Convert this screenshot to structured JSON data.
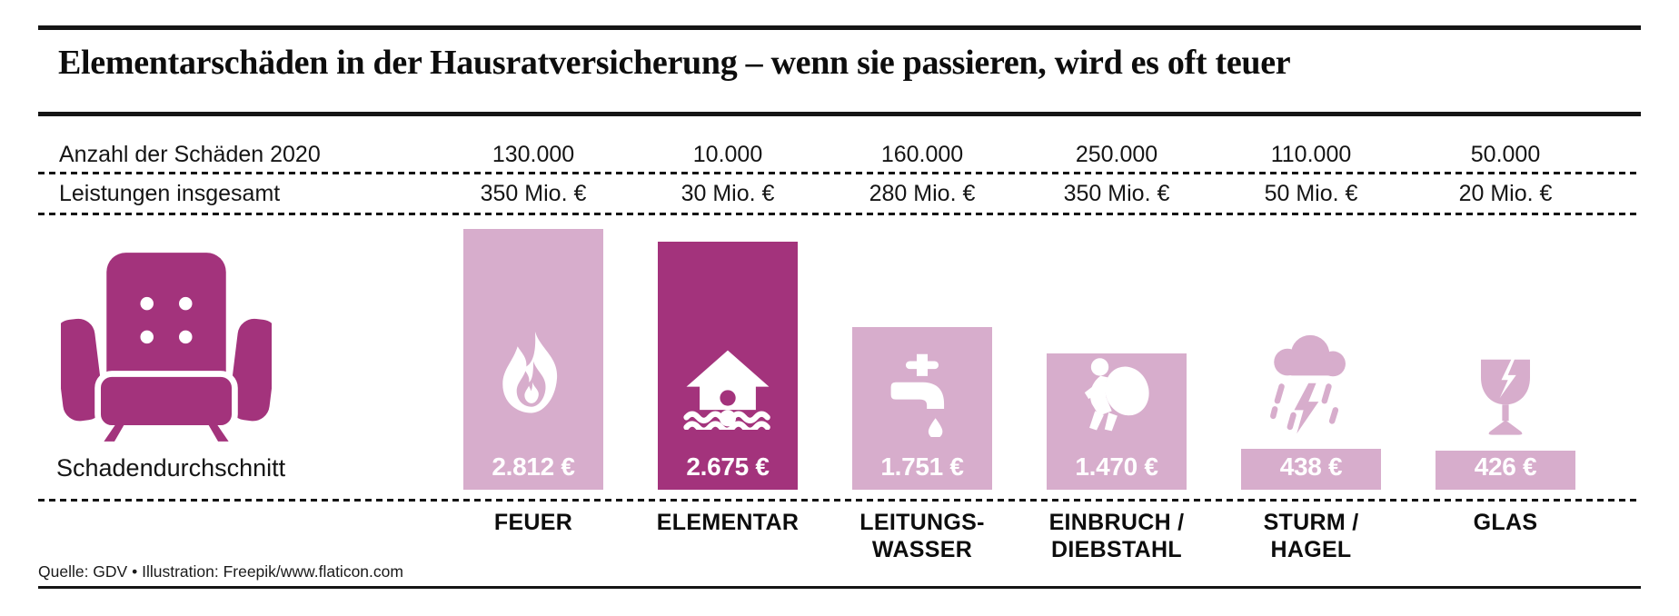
{
  "title": "Elementarschäden in der Hausratversicherung – wenn sie passieren, wird es oft teuer",
  "rows": {
    "anzahl_label": "Anzahl der Schäden 2020",
    "leistungen_label": "Leistungen insgesamt"
  },
  "average_label": "Schadendurchschnitt",
  "source": "Quelle: GDV • Illustration: Freepik/www.flaticon.com",
  "columns": [
    {
      "category": "FEUER",
      "label1": "FEUER",
      "label2": "",
      "anzahl": "130.000",
      "leistungen": "350 Mio. €",
      "value": 2812,
      "value_label": "2.812 €",
      "highlight": false,
      "icon": "fire-icon"
    },
    {
      "category": "ELEMENTAR",
      "label1": "ELEMENTAR",
      "label2": "",
      "anzahl": "10.000",
      "leistungen": "30 Mio. €",
      "value": 2675,
      "value_label": "2.675 €",
      "highlight": true,
      "icon": "flooded-house-icon"
    },
    {
      "category": "LEITUNGSWASSER",
      "label1": "LEITUNGS-",
      "label2": "WASSER",
      "anzahl": "160.000",
      "leistungen": "280 Mio. €",
      "value": 1751,
      "value_label": "1.751 €",
      "highlight": false,
      "icon": "water-tap-icon"
    },
    {
      "category": "EINBRUCH/DIEBSTAHL",
      "label1": "EINBRUCH /",
      "label2": "DIEBSTAHL",
      "anzahl": "250.000",
      "leistungen": "350 Mio. €",
      "value": 1470,
      "value_label": "1.470 €",
      "highlight": false,
      "icon": "burglar-icon"
    },
    {
      "category": "STURM/HAGEL",
      "label1": "STURM /",
      "label2": "HAGEL",
      "anzahl": "110.000",
      "leistungen": "50 Mio. €",
      "value": 438,
      "value_label": "438 €",
      "highlight": false,
      "icon": "storm-cloud-icon"
    },
    {
      "category": "GLAS",
      "label1": "GLAS",
      "label2": "",
      "anzahl": "50.000",
      "leistungen": "20 Mio. €",
      "value": 426,
      "value_label": "426 €",
      "highlight": false,
      "icon": "broken-glass-icon"
    }
  ],
  "chart_data": {
    "type": "bar",
    "title": "Elementarschäden in der Hausratversicherung – wenn sie passieren, wird es oft teuer",
    "categories": [
      "FEUER",
      "ELEMENTAR",
      "LEITUNGSWASSER",
      "EINBRUCH/DIEBSTAHL",
      "STURM/HAGEL",
      "GLAS"
    ],
    "series": [
      {
        "name": "Anzahl der Schäden 2020",
        "values": [
          130000,
          10000,
          160000,
          250000,
          110000,
          50000
        ]
      },
      {
        "name": "Leistungen insgesamt (Mio. €)",
        "values": [
          350,
          30,
          280,
          350,
          50,
          20
        ]
      },
      {
        "name": "Schadendurchschnitt (€)",
        "values": [
          2812,
          2675,
          1751,
          1470,
          438,
          426
        ]
      }
    ],
    "highlighted_category": "ELEMENTAR",
    "ylim": [
      0,
      2812
    ],
    "grid": false,
    "legend": false
  },
  "colors": {
    "magenta": "#a3337c",
    "pink": "#d7adcc",
    "ink": "#151515",
    "bg": "#ffffff"
  }
}
